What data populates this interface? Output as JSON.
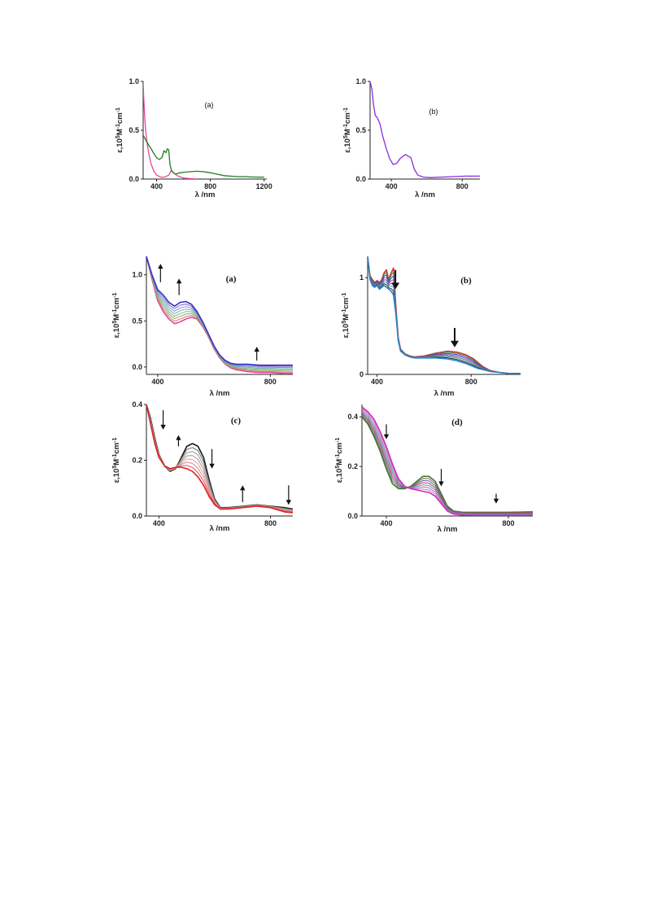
{
  "chart_data": [
    {
      "id": "top-a",
      "type": "line",
      "panel_label": "(a)",
      "xlabel": "λ /nm",
      "ylabel": "ε,10<sup>5</sup>M<sup>-1</sup>cm<sup>-1</sup>",
      "xlim": [
        300,
        1220
      ],
      "ylim": [
        0,
        1.0
      ],
      "xticks": [
        400,
        800,
        1200
      ],
      "yticks": [
        0.0,
        0.5,
        1.0
      ],
      "ytick_labels": [
        "0.0",
        "0.5",
        "1.0"
      ],
      "series": [
        {
          "color": "#e8459a",
          "width": 1.3,
          "x": [
            300,
            305,
            312,
            320,
            330,
            345,
            360,
            380,
            400,
            430,
            460,
            490,
            510,
            530,
            560,
            600,
            650,
            700
          ],
          "y": [
            0.98,
            0.82,
            0.62,
            0.48,
            0.36,
            0.24,
            0.15,
            0.08,
            0.04,
            0.02,
            0.02,
            0.04,
            0.09,
            0.06,
            0.03,
            0.01,
            0.005,
            0.0
          ]
        },
        {
          "color": "#1e7d1e",
          "width": 1.3,
          "x": [
            300,
            320,
            340,
            360,
            380,
            400,
            420,
            440,
            455,
            470,
            480,
            490,
            500,
            510,
            520,
            540,
            560,
            600,
            650,
            700,
            750,
            800,
            850,
            900,
            950,
            1000,
            1050,
            1100,
            1150,
            1200
          ],
          "y": [
            0.45,
            0.4,
            0.35,
            0.31,
            0.26,
            0.22,
            0.2,
            0.22,
            0.29,
            0.27,
            0.31,
            0.3,
            0.15,
            0.09,
            0.07,
            0.05,
            0.06,
            0.07,
            0.075,
            0.08,
            0.075,
            0.065,
            0.05,
            0.035,
            0.03,
            0.025,
            0.025,
            0.022,
            0.02,
            0.02
          ]
        }
      ],
      "arrows": []
    },
    {
      "id": "top-b",
      "type": "line",
      "panel_label": "(b)",
      "xlabel": "λ /nm",
      "ylabel": "ε,10<sup>5</sup>M<sup>-1</sup>cm<sup>-1</sup>",
      "xlim": [
        280,
        900
      ],
      "ylim": [
        0,
        1.0
      ],
      "xticks": [
        400,
        800
      ],
      "yticks": [
        0.0,
        0.5,
        1.0
      ],
      "ytick_labels": [
        "0.0",
        "0.5",
        "1.0"
      ],
      "series": [
        {
          "color": "#8a2be2",
          "width": 1.3,
          "x": [
            280,
            290,
            300,
            310,
            320,
            335,
            350,
            370,
            390,
            410,
            430,
            450,
            470,
            480,
            490,
            510,
            530,
            550,
            580,
            620,
            680,
            750,
            820,
            880,
            900
          ],
          "y": [
            1.0,
            0.92,
            0.75,
            0.65,
            0.63,
            0.57,
            0.45,
            0.32,
            0.21,
            0.15,
            0.16,
            0.21,
            0.24,
            0.25,
            0.24,
            0.22,
            0.1,
            0.04,
            0.02,
            0.015,
            0.02,
            0.025,
            0.03,
            0.03,
            0.03
          ]
        }
      ],
      "arrows": []
    },
    {
      "id": "bottom-a",
      "type": "line",
      "panel_label": "(a)",
      "label_font": "serif",
      "xlabel": "λ /nm",
      "ylabel": "ε,10<sup>5</sup>M<sup>-1</sup>cm<sup>-1</sup>",
      "xlim": [
        360,
        880
      ],
      "ylim": [
        -0.08,
        1.2
      ],
      "xticks": [
        400,
        800
      ],
      "yticks": [
        0.0,
        0.5,
        1.0
      ],
      "ytick_labels": [
        "0.0",
        "0.5",
        "1.0"
      ],
      "family": {
        "n": 8,
        "colors": [
          "#e8459a",
          "#c28080",
          "#a4a35a",
          "#7bb87a",
          "#66b3b3",
          "#7e8fd0",
          "#8560c8",
          "#3434c0"
        ],
        "x": [
          360,
          380,
          400,
          420,
          440,
          460,
          480,
          500,
          520,
          540,
          560,
          580,
          600,
          620,
          640,
          660,
          680,
          700,
          720,
          760,
          800,
          850,
          880
        ],
        "y_first": [
          1.2,
          0.95,
          0.72,
          0.6,
          0.52,
          0.47,
          0.49,
          0.52,
          0.54,
          0.52,
          0.44,
          0.33,
          0.2,
          0.1,
          0.03,
          -0.01,
          -0.03,
          -0.04,
          -0.05,
          -0.06,
          -0.06,
          -0.07,
          -0.07
        ],
        "y_last": [
          1.2,
          1.0,
          0.84,
          0.78,
          0.7,
          0.66,
          0.7,
          0.71,
          0.68,
          0.6,
          0.49,
          0.36,
          0.23,
          0.13,
          0.07,
          0.04,
          0.03,
          0.03,
          0.03,
          0.02,
          0.02,
          0.02,
          0.02
        ]
      },
      "arrows": [
        {
          "x": 410,
          "y0": 0.92,
          "y1": 1.12,
          "dir": "up"
        },
        {
          "x": 476,
          "y0": 0.78,
          "y1": 0.96,
          "dir": "up"
        },
        {
          "x": 752,
          "y0": 0.07,
          "y1": 0.22,
          "dir": "up"
        }
      ]
    },
    {
      "id": "bottom-b",
      "type": "line",
      "panel_label": "(b)",
      "label_font": "serif",
      "xlabel": "λ /nm",
      "ylabel": "ε,10<sup>5</sup>M<sup>-1</sup>cm<sup>-1</sup>",
      "xlim": [
        360,
        1010
      ],
      "ylim": [
        0,
        1.22
      ],
      "xticks": [
        400,
        800
      ],
      "yticks": [
        0,
        1
      ],
      "ytick_labels": [
        "0",
        "1"
      ],
      "family": {
        "n": 8,
        "colors": [
          "#d43232",
          "#2f8f3a",
          "#3f3fbf",
          "#9b4fcf",
          "#707070",
          "#4aa0c0",
          "#2a2a2a",
          "#2a86c8"
        ],
        "x": [
          360,
          370,
          380,
          390,
          400,
          410,
          420,
          430,
          440,
          450,
          460,
          470,
          480,
          490,
          500,
          520,
          540,
          560,
          600,
          650,
          700,
          740,
          780,
          810,
          830,
          850,
          880,
          920,
          960,
          1000,
          1010
        ],
        "y_first": [
          1.22,
          1.02,
          0.98,
          0.95,
          0.97,
          0.95,
          0.98,
          1.05,
          1.08,
          0.98,
          1.05,
          1.1,
          0.7,
          0.38,
          0.26,
          0.21,
          0.19,
          0.18,
          0.19,
          0.22,
          0.24,
          0.23,
          0.2,
          0.16,
          0.12,
          0.08,
          0.04,
          0.02,
          0.01,
          0.01,
          0.01
        ],
        "y_last": [
          1.22,
          0.98,
          0.92,
          0.9,
          0.92,
          0.88,
          0.9,
          0.92,
          0.9,
          0.88,
          0.86,
          0.82,
          0.62,
          0.35,
          0.24,
          0.2,
          0.18,
          0.17,
          0.17,
          0.17,
          0.16,
          0.14,
          0.11,
          0.08,
          0.06,
          0.05,
          0.03,
          0.02,
          0.01,
          0.01,
          0.01
        ]
      },
      "arrows": [
        {
          "x": 478,
          "y0": 1.08,
          "y1": 0.88,
          "dir": "down",
          "bold": true
        },
        {
          "x": 730,
          "y0": 0.48,
          "y1": 0.28,
          "dir": "down",
          "bold": true
        }
      ]
    },
    {
      "id": "bottom-c",
      "type": "line",
      "panel_label": "(c)",
      "label_font": "serif",
      "xlabel": "λ /nm",
      "ylabel": "ε,10<sup>5</sup>M<sup>-1</sup>cm<sup>-1</sup>",
      "xlim": [
        355,
        880
      ],
      "ylim": [
        0,
        0.4
      ],
      "xticks": [
        400,
        800
      ],
      "yticks": [
        0.0,
        0.2,
        0.4
      ],
      "ytick_labels": [
        "0.0",
        "0.2",
        "0.4"
      ],
      "family": {
        "n": 8,
        "colors": [
          "#1a1a1a",
          "#6a6a6a",
          "#8fa0a0",
          "#b59070",
          "#d0a0b0",
          "#e08090",
          "#e85555",
          "#e02020"
        ],
        "x": [
          355,
          370,
          385,
          400,
          420,
          440,
          460,
          480,
          500,
          520,
          540,
          560,
          580,
          600,
          620,
          650,
          700,
          750,
          800,
          850,
          880
        ],
        "y_first": [
          0.4,
          0.35,
          0.28,
          0.22,
          0.18,
          0.16,
          0.17,
          0.21,
          0.25,
          0.26,
          0.25,
          0.21,
          0.13,
          0.06,
          0.03,
          0.03,
          0.035,
          0.04,
          0.035,
          0.03,
          0.025
        ],
        "y_last": [
          0.4,
          0.33,
          0.26,
          0.21,
          0.18,
          0.17,
          0.175,
          0.175,
          0.17,
          0.16,
          0.14,
          0.11,
          0.07,
          0.04,
          0.025,
          0.025,
          0.03,
          0.035,
          0.03,
          0.015,
          0.012
        ]
      },
      "arrows": [
        {
          "x": 415,
          "y0": 0.38,
          "y1": 0.31,
          "dir": "down"
        },
        {
          "x": 470,
          "y0": 0.25,
          "y1": 0.29,
          "dir": "up"
        },
        {
          "x": 590,
          "y0": 0.24,
          "y1": 0.17,
          "dir": "down"
        },
        {
          "x": 700,
          "y0": 0.05,
          "y1": 0.11,
          "dir": "up"
        },
        {
          "x": 865,
          "y0": 0.11,
          "y1": 0.04,
          "dir": "down"
        }
      ]
    },
    {
      "id": "bottom-d",
      "type": "line",
      "panel_label": "(d)",
      "label_font": "serif",
      "xlabel": "λ /nm",
      "ylabel": "ε,10<sup>5</sup>M<sup>-1</sup>cm<sup>-1</sup>",
      "xlim": [
        320,
        880
      ],
      "ylim": [
        0,
        0.45
      ],
      "xticks": [
        400,
        800
      ],
      "yticks": [
        0.0,
        0.2,
        0.4
      ],
      "ytick_labels": [
        "0.0",
        "0.2",
        "0.4"
      ],
      "family": {
        "n": 8,
        "colors": [
          "#3a7a3a",
          "#8a6a3a",
          "#5a5ab0",
          "#c04060",
          "#40a0a0",
          "#a070c0",
          "#e070b0",
          "#c030c0"
        ],
        "x": [
          320,
          340,
          360,
          380,
          400,
          420,
          440,
          460,
          480,
          500,
          520,
          540,
          560,
          580,
          600,
          620,
          650,
          700,
          750,
          800,
          850,
          880
        ],
        "y_first": [
          0.4,
          0.37,
          0.32,
          0.26,
          0.19,
          0.13,
          0.11,
          0.11,
          0.12,
          0.14,
          0.16,
          0.16,
          0.14,
          0.09,
          0.04,
          0.02,
          0.015,
          0.015,
          0.015,
          0.015,
          0.016,
          0.017
        ],
        "y_last": [
          0.44,
          0.42,
          0.39,
          0.34,
          0.28,
          0.21,
          0.15,
          0.12,
          0.11,
          0.105,
          0.1,
          0.095,
          0.08,
          0.05,
          0.02,
          0.008,
          0.004,
          0.003,
          0.003,
          0.003,
          0.003,
          0.003
        ]
      },
      "arrows": [
        {
          "x": 400,
          "y0": 0.37,
          "y1": 0.31,
          "dir": "down"
        },
        {
          "x": 580,
          "y0": 0.19,
          "y1": 0.12,
          "dir": "down"
        },
        {
          "x": 760,
          "y0": 0.09,
          "y1": 0.05,
          "dir": "down"
        }
      ]
    }
  ]
}
